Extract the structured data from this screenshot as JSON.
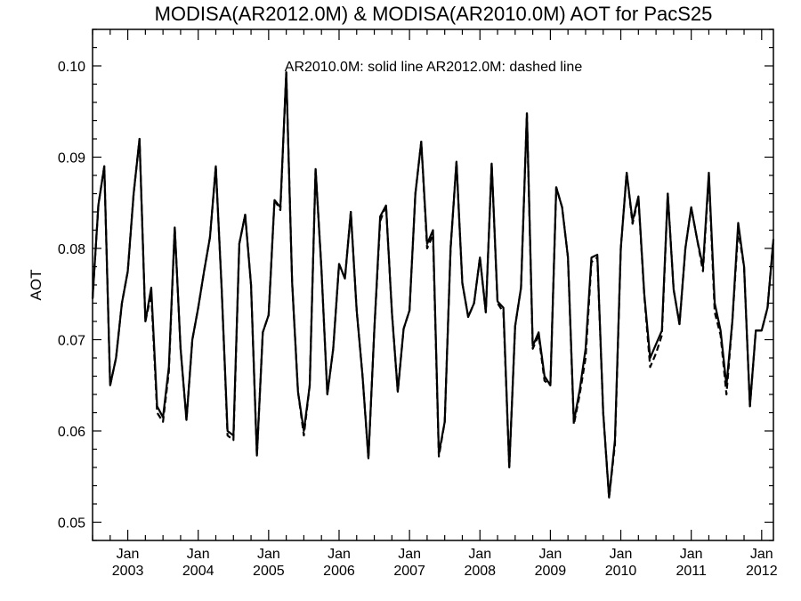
{
  "chart_data": {
    "type": "line",
    "title": "MODISA(AR2012.0M) & MODISA(AR2010.0M)  AOT for PacS25",
    "annotation": "AR2010.0M: solid line   AR2012.0M: dashed line",
    "xlabel": "",
    "ylabel": "AOT",
    "xlim": [
      "2002-07-01",
      "2012-03-01"
    ],
    "ylim": [
      0.048,
      0.104
    ],
    "grid": false,
    "y_ticks": [
      0.05,
      0.06,
      0.07,
      0.08,
      0.09,
      0.1
    ],
    "y_tick_labels": [
      "0.05",
      "0.06",
      "0.07",
      "0.08",
      "0.09",
      "0.10"
    ],
    "x_ticks": [
      {
        "date": "2003-01",
        "month": "Jan",
        "year": "2003"
      },
      {
        "date": "2004-01",
        "month": "Jan",
        "year": "2004"
      },
      {
        "date": "2005-01",
        "month": "Jan",
        "year": "2005"
      },
      {
        "date": "2006-01",
        "month": "Jan",
        "year": "2006"
      },
      {
        "date": "2007-01",
        "month": "Jan",
        "year": "2007"
      },
      {
        "date": "2008-01",
        "month": "Jan",
        "year": "2008"
      },
      {
        "date": "2009-01",
        "month": "Jan",
        "year": "2009"
      },
      {
        "date": "2010-01",
        "month": "Jan",
        "year": "2010"
      },
      {
        "date": "2011-01",
        "month": "Jan",
        "year": "2011"
      },
      {
        "date": "2012-01",
        "month": "Jan",
        "year": "2012"
      }
    ],
    "x": [
      "2002-07",
      "2002-08",
      "2002-09",
      "2002-10",
      "2002-11",
      "2002-12",
      "2003-01",
      "2003-02",
      "2003-03",
      "2003-04",
      "2003-05",
      "2003-06",
      "2003-07",
      "2003-08",
      "2003-09",
      "2003-10",
      "2003-11",
      "2003-12",
      "2004-01",
      "2004-02",
      "2004-03",
      "2004-04",
      "2004-05",
      "2004-06",
      "2004-07",
      "2004-08",
      "2004-09",
      "2004-10",
      "2004-11",
      "2004-12",
      "2005-01",
      "2005-02",
      "2005-03",
      "2005-04",
      "2005-05",
      "2005-06",
      "2005-07",
      "2005-08",
      "2005-09",
      "2005-10",
      "2005-11",
      "2005-12",
      "2006-01",
      "2006-02",
      "2006-03",
      "2006-04",
      "2006-05",
      "2006-06",
      "2006-07",
      "2006-08",
      "2006-09",
      "2006-10",
      "2006-11",
      "2006-12",
      "2007-01",
      "2007-02",
      "2007-03",
      "2007-04",
      "2007-05",
      "2007-06",
      "2007-07",
      "2007-08",
      "2007-09",
      "2007-10",
      "2007-11",
      "2007-12",
      "2008-01",
      "2008-02",
      "2008-03",
      "2008-04",
      "2008-05",
      "2008-06",
      "2008-07",
      "2008-08",
      "2008-09",
      "2008-10",
      "2008-11",
      "2008-12",
      "2009-01",
      "2009-02",
      "2009-03",
      "2009-04",
      "2009-05",
      "2009-06",
      "2009-07",
      "2009-08",
      "2009-09",
      "2009-10",
      "2009-11",
      "2009-12",
      "2010-01",
      "2010-02",
      "2010-03",
      "2010-04",
      "2010-05",
      "2010-06",
      "2010-07",
      "2010-08",
      "2010-09",
      "2010-10",
      "2010-11",
      "2010-12",
      "2011-01",
      "2011-02",
      "2011-03",
      "2011-04",
      "2011-05",
      "2011-06",
      "2011-07",
      "2011-08",
      "2011-09",
      "2011-10",
      "2011-11",
      "2011-12",
      "2012-01",
      "2012-02",
      "2012-03"
    ],
    "series": [
      {
        "name": "AR2010.0M",
        "style": "solid",
        "color": "#000000",
        "values": [
          0.0745,
          0.0848,
          0.089,
          0.065,
          0.068,
          0.074,
          0.0775,
          0.086,
          0.092,
          0.072,
          0.0757,
          0.0627,
          0.0615,
          0.067,
          0.0823,
          0.069,
          0.0612,
          0.07,
          0.0735,
          0.0775,
          0.0812,
          0.089,
          0.0755,
          0.06,
          0.0595,
          0.0805,
          0.0837,
          0.076,
          0.0573,
          0.0708,
          0.0727,
          0.0853,
          0.0845,
          0.0993,
          0.0763,
          0.0643,
          0.06,
          0.065,
          0.0887,
          0.0777,
          0.064,
          0.069,
          0.0783,
          0.0767,
          0.084,
          0.0732,
          0.066,
          0.057,
          0.071,
          0.0835,
          0.0847,
          0.073,
          0.0643,
          0.0712,
          0.0732,
          0.086,
          0.0917,
          0.0805,
          0.082,
          0.0575,
          0.061,
          0.08,
          0.0895,
          0.0762,
          0.0725,
          0.074,
          0.079,
          0.073,
          0.0893,
          0.0742,
          0.0735,
          0.056,
          0.0715,
          0.0757,
          0.0948,
          0.0693,
          0.0708,
          0.066,
          0.065,
          0.0867,
          0.0845,
          0.079,
          0.061,
          0.0645,
          0.069,
          0.079,
          0.0793,
          0.062,
          0.0527,
          0.059,
          0.08,
          0.0883,
          0.083,
          0.0857,
          0.075,
          0.068,
          0.0695,
          0.071,
          0.086,
          0.0755,
          0.0717,
          0.08,
          0.0845,
          0.081,
          0.078,
          0.0883,
          0.074,
          0.071,
          0.065,
          0.072,
          0.0828,
          0.078,
          0.0627,
          0.071,
          0.071,
          0.0735,
          0.081
        ]
      },
      {
        "name": "AR2012.0M",
        "style": "dashed",
        "color": "#000000",
        "values": [
          0.0745,
          0.0848,
          0.089,
          0.065,
          0.068,
          0.074,
          0.0775,
          0.086,
          0.092,
          0.072,
          0.075,
          0.062,
          0.061,
          0.0665,
          0.0823,
          0.069,
          0.0612,
          0.07,
          0.0735,
          0.0775,
          0.0812,
          0.089,
          0.0755,
          0.0595,
          0.059,
          0.0805,
          0.0837,
          0.076,
          0.0573,
          0.0708,
          0.0727,
          0.0853,
          0.0842,
          0.0993,
          0.0763,
          0.0643,
          0.0595,
          0.065,
          0.0887,
          0.0777,
          0.064,
          0.069,
          0.0783,
          0.0767,
          0.084,
          0.0732,
          0.066,
          0.057,
          0.071,
          0.083,
          0.0847,
          0.073,
          0.0643,
          0.0712,
          0.0732,
          0.086,
          0.0917,
          0.08,
          0.0815,
          0.0572,
          0.061,
          0.08,
          0.0895,
          0.0762,
          0.0725,
          0.074,
          0.079,
          0.073,
          0.0893,
          0.074,
          0.073,
          0.056,
          0.0715,
          0.0757,
          0.0948,
          0.069,
          0.0705,
          0.0655,
          0.065,
          0.0867,
          0.0845,
          0.079,
          0.0607,
          0.064,
          0.068,
          0.0785,
          0.079,
          0.062,
          0.0527,
          0.0585,
          0.08,
          0.0883,
          0.0827,
          0.0855,
          0.0748,
          0.067,
          0.0685,
          0.0705,
          0.086,
          0.0755,
          0.0717,
          0.08,
          0.0845,
          0.081,
          0.0775,
          0.088,
          0.073,
          0.0705,
          0.064,
          0.072,
          0.082,
          0.078,
          0.0627,
          0.071,
          0.071,
          0.0735,
          0.081
        ]
      }
    ]
  }
}
